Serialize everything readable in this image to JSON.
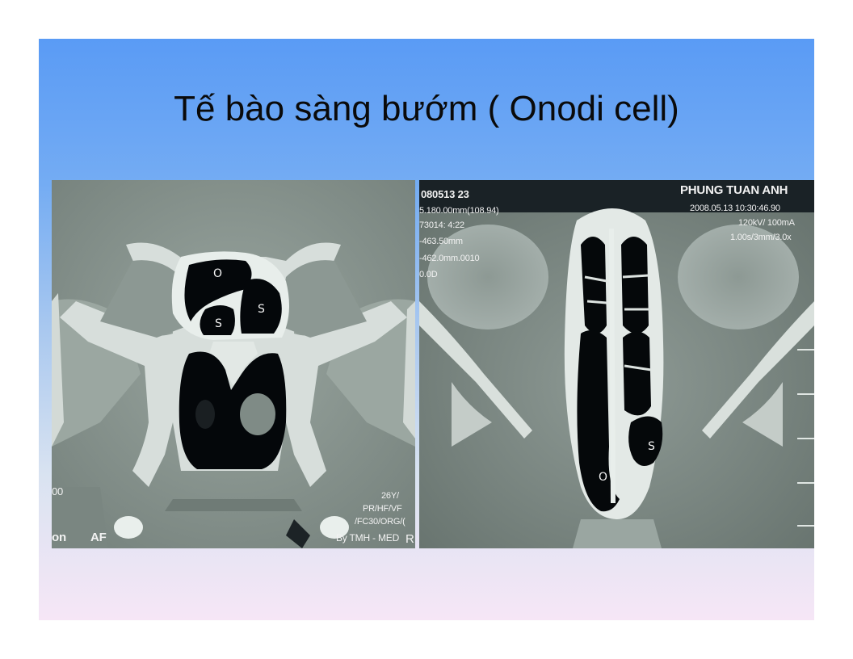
{
  "slide": {
    "title": "Tế bào sàng bướm ( Onodi cell)"
  },
  "left_scan": {
    "cell_labels": [
      "O",
      "S",
      "S"
    ],
    "overlay": {
      "bottom_left_1": "00",
      "bottom_left_2": "on",
      "bottom_left_3": "AF",
      "bottom_right": [
        "26Y/",
        "PR/HF/VF",
        "/FC30/ORG/(",
        "By TMH - MED"
      ],
      "edge": "R"
    }
  },
  "right_scan": {
    "cell_labels": [
      "S",
      "O"
    ],
    "overlay": {
      "top_left": [
        "080513 23",
        "5.180.00mm(108.94)",
        "73014: 4:22",
        "-463.50mm",
        "-462.0mm.0010",
        "0.0D"
      ],
      "patient_name": "PHUNG TUAN ANH",
      "top_right": [
        "2008.05.13 10:30:46.90",
        "120kV/ 100mA",
        "1.00s/3mm/3.0x"
      ]
    }
  },
  "colors": {
    "gradient_top": "#5a9bf5",
    "gradient_bottom": "#f6e6f6",
    "scan_tissue": "#8a9691",
    "bone": "#e6ecea",
    "air": "#05080a"
  }
}
